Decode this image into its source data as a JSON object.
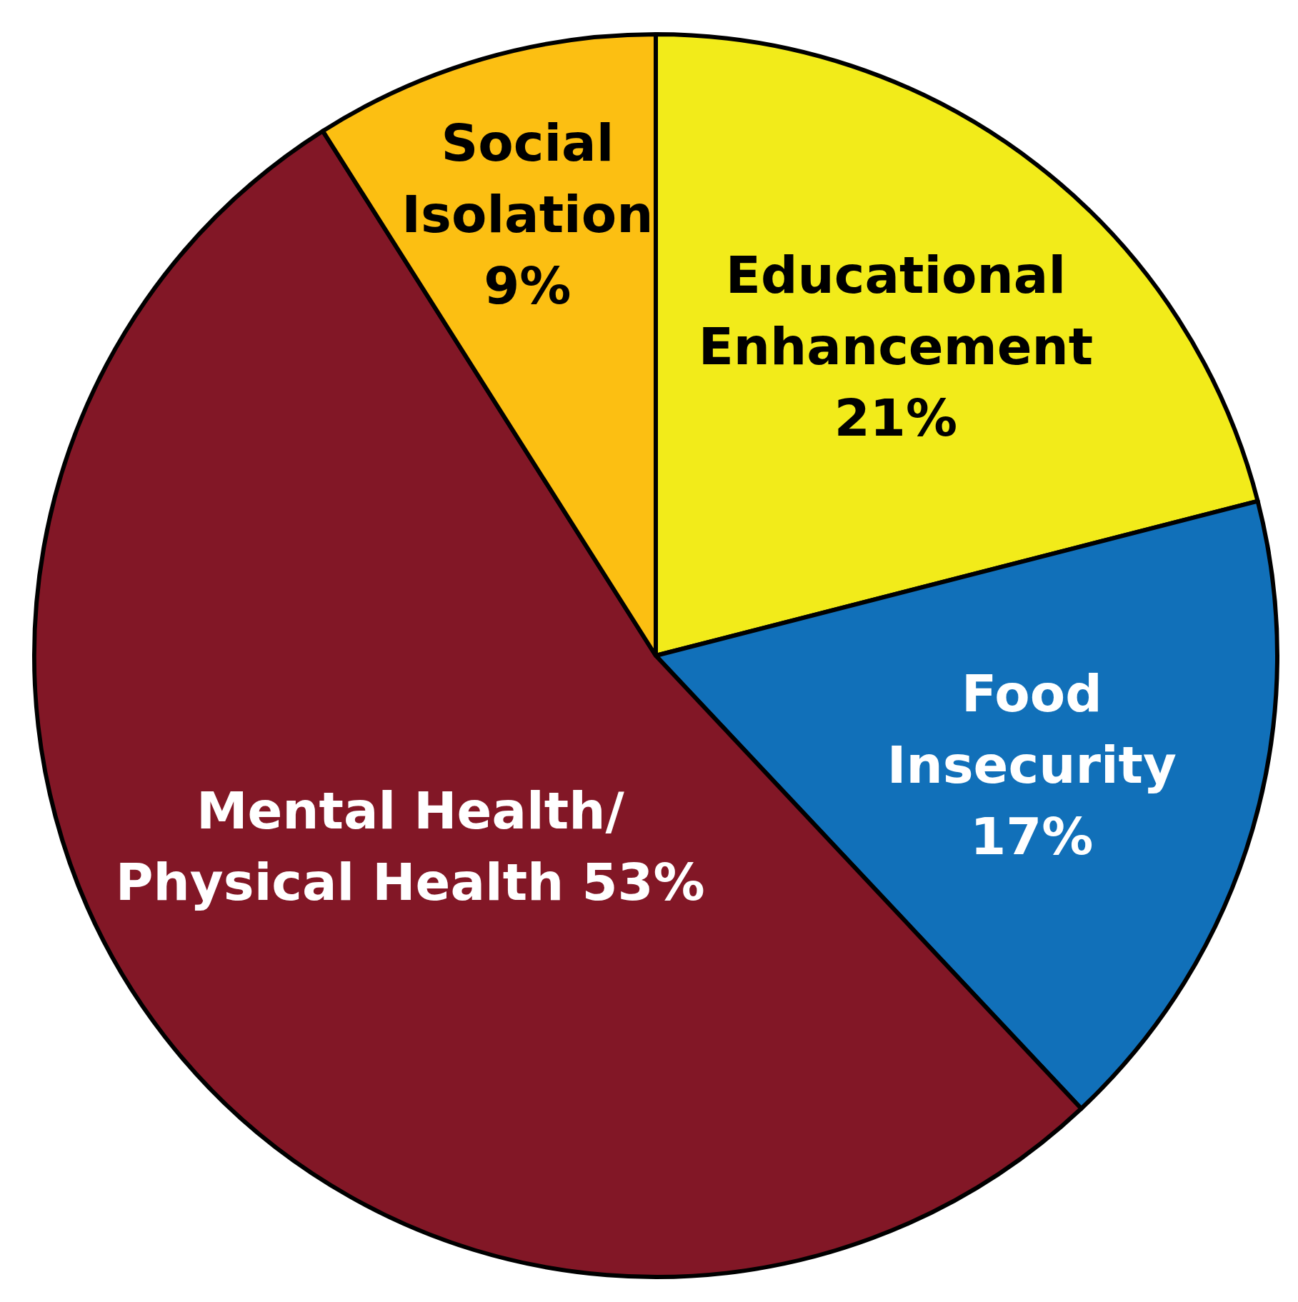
{
  "chart_data": {
    "type": "pie",
    "categories": [
      "Educational Enhancement",
      "Food Insecurity",
      "Mental Health/Physical Health",
      "Social Isolation"
    ],
    "values": [
      21,
      17,
      53,
      9
    ],
    "colors": [
      "#f2eb1a",
      "#1170b9",
      "#821726",
      "#fcbf12"
    ],
    "value_labels": [
      "21%",
      "17%",
      "53%",
      "9%"
    ]
  }
}
